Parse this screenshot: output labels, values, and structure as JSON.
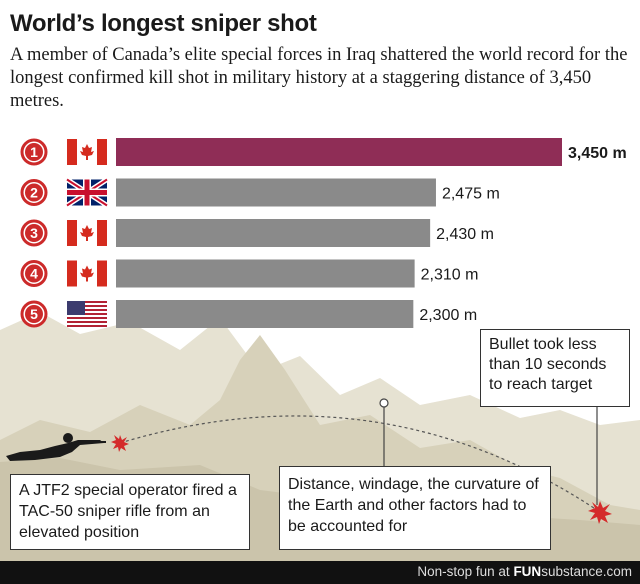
{
  "title": "World’s longest sniper shot",
  "subtitle": "A member of Canada’s elite special forces in Iraq shattered the world record for the longest confirmed kill shot in military history at a staggering distance of 3,450 metres.",
  "chart_data": {
    "type": "bar",
    "orientation": "horizontal",
    "unit": "m",
    "bars": [
      {
        "rank": "1",
        "country_flag": "canada-flag-icon",
        "value": 3450,
        "label": "3,450 m",
        "highlight": true
      },
      {
        "rank": "2",
        "country_flag": "uk-flag-icon",
        "value": 2475,
        "label": "2,475 m",
        "highlight": false
      },
      {
        "rank": "3",
        "country_flag": "canada-flag-icon",
        "value": 2430,
        "label": "2,430 m",
        "highlight": false
      },
      {
        "rank": "4",
        "country_flag": "canada-flag-icon",
        "value": 2310,
        "label": "2,310 m",
        "highlight": false
      },
      {
        "rank": "5",
        "country_flag": "usa-flag-icon",
        "value": 2300,
        "label": "2,300 m",
        "highlight": false
      }
    ],
    "xlim": [
      0,
      3450
    ],
    "colors": {
      "highlight": "#8f2d56",
      "default": "#8a8a8a",
      "rank_circle": "#cc2a2a"
    }
  },
  "annotations": {
    "time": "Bullet took less than 10 seconds to reach target",
    "shooter": "A JTF2 special operator fired a TAC-50 sniper rifle from an elevated position",
    "factors": "Distance, windage, the curvature of the Earth and other factors had to be accounted for"
  },
  "footer": {
    "prefix": "Non-stop fun at",
    "brand_bold": "FUN",
    "brand_rest": "substance",
    "domain": ".com"
  }
}
